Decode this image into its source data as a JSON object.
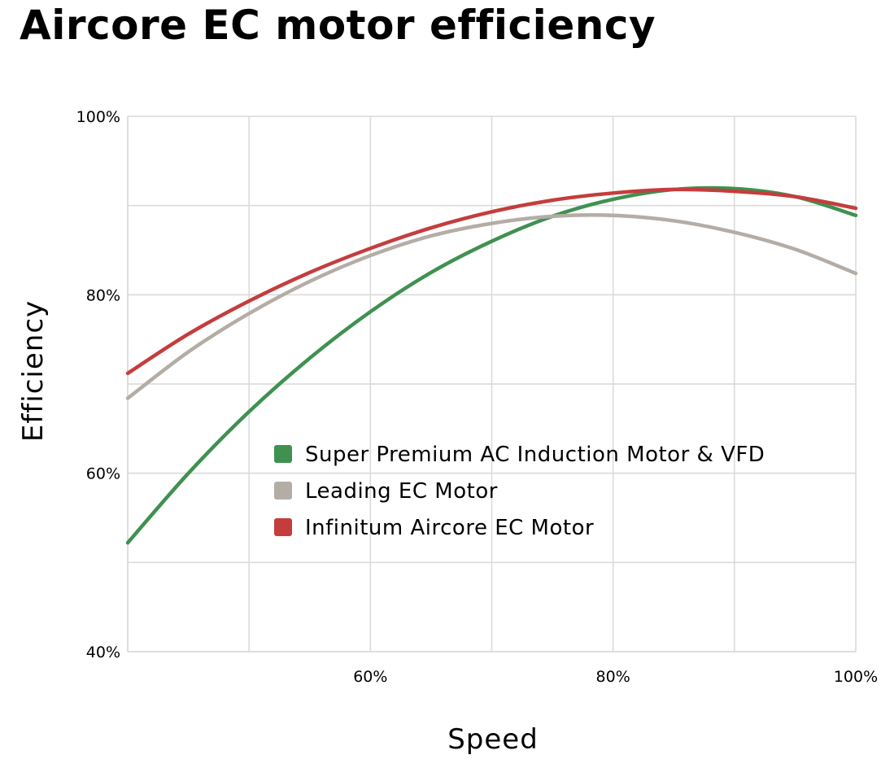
{
  "chart_data": {
    "type": "line",
    "title": "Aircore EC motor efficiency",
    "xlabel": "Speed",
    "ylabel": "Efficiency",
    "xlim": [
      40,
      100
    ],
    "ylim": [
      40,
      100
    ],
    "x_gridlines": [
      50,
      60,
      70,
      80,
      90,
      100
    ],
    "y_gridlines": [
      50,
      60,
      70,
      80,
      90,
      100
    ],
    "x_tick_labels": [
      {
        "value": 60,
        "label": "60%"
      },
      {
        "value": 80,
        "label": "80%"
      },
      {
        "value": 100,
        "label": "100%"
      }
    ],
    "y_tick_labels": [
      {
        "value": 40,
        "label": "40%"
      },
      {
        "value": 60,
        "label": "60%"
      },
      {
        "value": 80,
        "label": "80%"
      },
      {
        "value": 100,
        "label": "100%"
      }
    ],
    "grid": true,
    "legend_position": "center",
    "x": [
      40,
      45,
      50,
      55,
      60,
      65,
      70,
      75,
      80,
      85,
      90,
      95,
      100
    ],
    "series": [
      {
        "name": "Super Premium AC Induction Motor & VFD",
        "color": "#3f9150",
        "values": [
          52.2,
          60.0,
          66.9,
          72.9,
          78.1,
          82.5,
          86.0,
          88.8,
          90.7,
          91.8,
          91.9,
          91.0,
          88.9
        ]
      },
      {
        "name": "Leading EC Motor",
        "color": "#b4ada6",
        "values": [
          68.4,
          73.6,
          77.9,
          81.5,
          84.4,
          86.6,
          88.0,
          88.8,
          88.9,
          88.3,
          87.0,
          85.1,
          82.4
        ]
      },
      {
        "name": "Infinitum Aircore EC Motor",
        "color": "#c43d3d",
        "values": [
          71.2,
          75.6,
          79.3,
          82.5,
          85.2,
          87.5,
          89.3,
          90.6,
          91.4,
          91.8,
          91.6,
          91.0,
          89.7
        ]
      }
    ]
  }
}
